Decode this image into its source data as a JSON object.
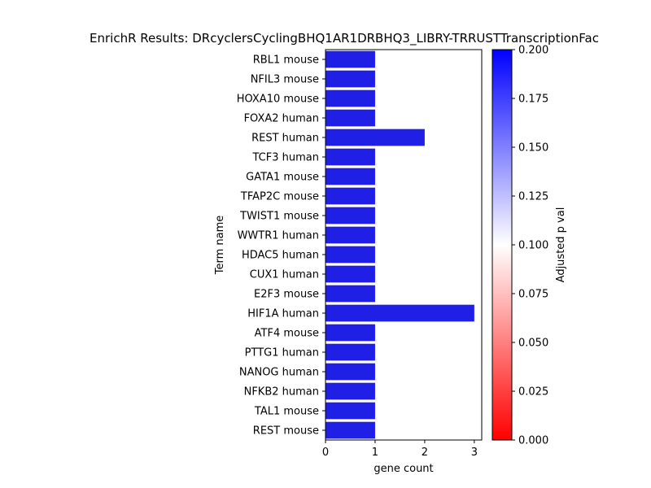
{
  "colors": {
    "bar": "#1f1fe6",
    "cmap_high": "#0000ff",
    "cmap_mid": "#ffffff",
    "cmap_low": "#ff0000"
  },
  "chart_data": {
    "type": "bar",
    "orientation": "horizontal",
    "title": "EnrichR Results: DRcyclersCyclingBHQ1AR1DRBHQ3_LIBRY-TRRUSTTranscriptionFac",
    "xlabel": "gene count",
    "ylabel": "Term name",
    "xlim": [
      0,
      3.15
    ],
    "xticks": [
      0,
      1,
      2,
      3
    ],
    "grid": false,
    "categories": [
      "RBL1 mouse",
      "NFIL3 mouse",
      "HOXA10 mouse",
      "FOXA2 human",
      "REST human",
      "TCF3 human",
      "GATA1 mouse",
      "TFAP2C mouse",
      "TWIST1 mouse",
      "WWTR1 human",
      "HDAC5 human",
      "CUX1 human",
      "E2F3 mouse",
      "HIF1A human",
      "ATF4 mouse",
      "PTTG1 human",
      "NANOG human",
      "NFKB2 human",
      "TAL1 mouse",
      "REST mouse"
    ],
    "values": [
      1,
      1,
      1,
      1,
      2,
      1,
      1,
      1,
      1,
      1,
      1,
      1,
      1,
      3,
      1,
      1,
      1,
      1,
      1,
      1
    ],
    "colorbar": {
      "label": "Adjusted p val",
      "range": [
        0,
        0.2
      ],
      "ticks": [
        "0.000",
        "0.025",
        "0.050",
        "0.075",
        "0.100",
        "0.125",
        "0.150",
        "0.175",
        "0.200"
      ]
    }
  }
}
